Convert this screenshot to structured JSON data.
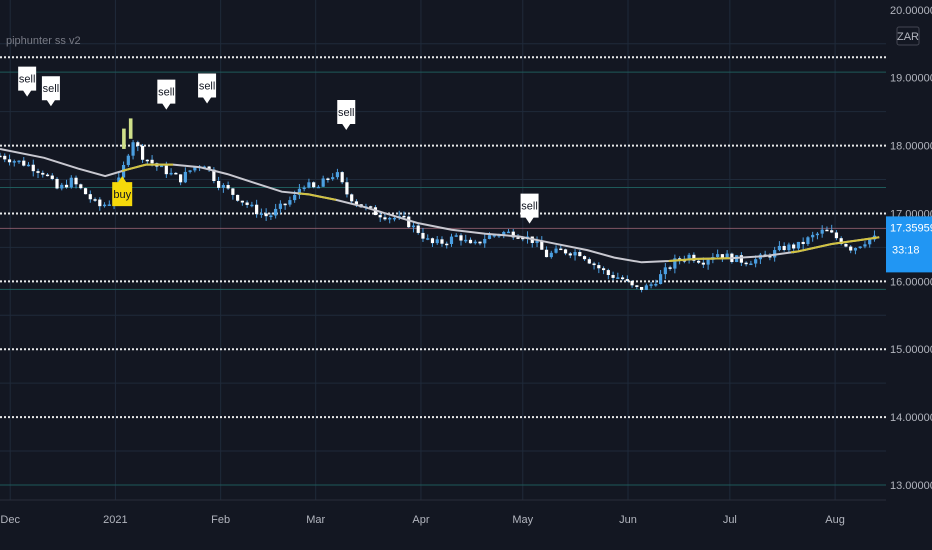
{
  "chart_data": {
    "type": "candlestick",
    "indicator_label": "piphunter ss v2",
    "currency_badge": "ZAR",
    "y_ticks": [
      "20.00000",
      "19.00000",
      "18.00000",
      "17.00000",
      "16.00000",
      "15.00000",
      "14.00000",
      "13.00000"
    ],
    "x_ticks": [
      {
        "label": "Dec",
        "day": 0
      },
      {
        "label": "2021",
        "day": 31
      },
      {
        "label": "Feb",
        "day": 62
      },
      {
        "label": "Mar",
        "day": 90
      },
      {
        "label": "Apr",
        "day": 121
      },
      {
        "label": "May",
        "day": 151
      },
      {
        "label": "Jun",
        "day": 182
      },
      {
        "label": "Jul",
        "day": 212
      },
      {
        "label": "Aug",
        "day": 243
      }
    ],
    "price_badge": {
      "value": "17.35959",
      "countdown": "33:18"
    },
    "ylim": [
      13.0,
      20.1
    ],
    "xlim_days": [
      -3,
      258
    ],
    "dotted_levels": [
      19.3,
      18.0,
      17.0,
      16.0,
      15.0,
      14.0
    ],
    "close_path": [
      [
        -3,
        17.85
      ],
      [
        5,
        17.72
      ],
      [
        10,
        17.6
      ],
      [
        14,
        17.35
      ],
      [
        18,
        17.48
      ],
      [
        22,
        17.3
      ],
      [
        26,
        17.1
      ],
      [
        30,
        17.18
      ],
      [
        33,
        17.62
      ],
      [
        36,
        18.1
      ],
      [
        39,
        17.85
      ],
      [
        43,
        17.7
      ],
      [
        46,
        17.62
      ],
      [
        50,
        17.5
      ],
      [
        54,
        17.68
      ],
      [
        57,
        17.75
      ],
      [
        61,
        17.45
      ],
      [
        64,
        17.35
      ],
      [
        68,
        17.2
      ],
      [
        72,
        17.05
      ],
      [
        76,
        16.95
      ],
      [
        80,
        17.1
      ],
      [
        84,
        17.25
      ],
      [
        86,
        17.45
      ],
      [
        90,
        17.35
      ],
      [
        93,
        17.5
      ],
      [
        96,
        17.6
      ],
      [
        99,
        17.3
      ],
      [
        103,
        17.12
      ],
      [
        108,
        17.0
      ],
      [
        112,
        16.95
      ],
      [
        116,
        16.9
      ],
      [
        120,
        16.75
      ],
      [
        124,
        16.55
      ],
      [
        128,
        16.58
      ],
      [
        132,
        16.68
      ],
      [
        136,
        16.5
      ],
      [
        140,
        16.65
      ],
      [
        145,
        16.72
      ],
      [
        150,
        16.7
      ],
      [
        154,
        16.6
      ],
      [
        158,
        16.38
      ],
      [
        162,
        16.45
      ],
      [
        168,
        16.42
      ],
      [
        172,
        16.25
      ],
      [
        176,
        16.1
      ],
      [
        180,
        16.05
      ],
      [
        184,
        15.88
      ],
      [
        188,
        15.92
      ],
      [
        192,
        16.1
      ],
      [
        196,
        16.3
      ],
      [
        200,
        16.38
      ],
      [
        204,
        16.3
      ],
      [
        208,
        16.42
      ],
      [
        212,
        16.35
      ],
      [
        216,
        16.3
      ],
      [
        220,
        16.32
      ],
      [
        224,
        16.4
      ],
      [
        228,
        16.5
      ],
      [
        232,
        16.52
      ],
      [
        236,
        16.65
      ],
      [
        240,
        16.75
      ],
      [
        244,
        16.62
      ],
      [
        248,
        16.48
      ],
      [
        252,
        16.6
      ],
      [
        256,
        16.65
      ]
    ],
    "ma_line": [
      [
        -3,
        17.95
      ],
      [
        10,
        17.82
      ],
      [
        20,
        17.66
      ],
      [
        28,
        17.55
      ],
      [
        34,
        17.64
      ],
      [
        40,
        17.72
      ],
      [
        48,
        17.72
      ],
      [
        56,
        17.68
      ],
      [
        64,
        17.58
      ],
      [
        72,
        17.45
      ],
      [
        80,
        17.32
      ],
      [
        88,
        17.28
      ],
      [
        96,
        17.2
      ],
      [
        104,
        17.1
      ],
      [
        112,
        16.98
      ],
      [
        120,
        16.86
      ],
      [
        130,
        16.76
      ],
      [
        140,
        16.7
      ],
      [
        150,
        16.66
      ],
      [
        160,
        16.56
      ],
      [
        170,
        16.46
      ],
      [
        178,
        16.35
      ],
      [
        186,
        16.28
      ],
      [
        194,
        16.3
      ],
      [
        202,
        16.33
      ],
      [
        212,
        16.34
      ],
      [
        222,
        16.37
      ],
      [
        232,
        16.44
      ],
      [
        242,
        16.55
      ],
      [
        252,
        16.62
      ],
      [
        256,
        16.65
      ]
    ],
    "signals": [
      {
        "label": "sell",
        "day": 5,
        "price": 18.72
      },
      {
        "label": "sell",
        "day": 12,
        "price": 18.58
      },
      {
        "label": "buy",
        "day": 33,
        "price": 17.55
      },
      {
        "label": "sell",
        "day": 46,
        "price": 18.53
      },
      {
        "label": "sell",
        "day": 58,
        "price": 18.62
      },
      {
        "label": "sell",
        "day": 99,
        "price": 18.23
      },
      {
        "label": "sell",
        "day": 153,
        "price": 16.85
      }
    ],
    "colors": {
      "background": "#131722",
      "candle": "#4b9fe1",
      "ma": "#c8c8d0",
      "ma_highlight": "#d1c240",
      "grid": "#1f2a3a",
      "teal_level": "#1e5a5a",
      "dotted_level": "#ffffff",
      "badge": "#2196f3",
      "buy": "#f5d90a",
      "sell": "#ffffff",
      "axis_text": "#b2b5be"
    }
  }
}
